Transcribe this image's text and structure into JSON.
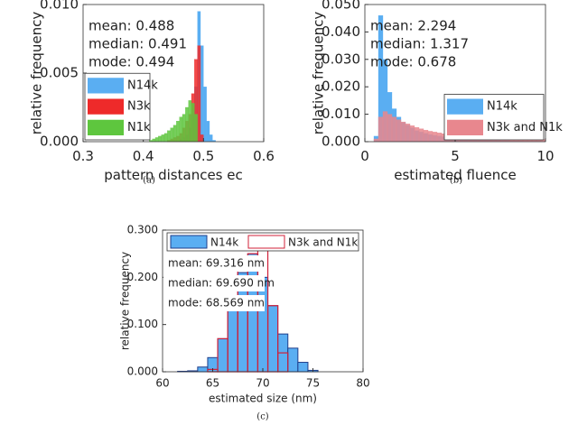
{
  "chart_data": [
    {
      "type": "histogram",
      "caption": "(a)",
      "xlabel": "pattern distances ec",
      "ylabel": "relative frequency",
      "xlim": [
        0.3,
        0.6
      ],
      "ylim": [
        0,
        0.01
      ],
      "xticks": [
        0.3,
        0.4,
        0.5,
        0.6
      ],
      "yticks": [
        {
          "value": 0,
          "label": "0.000"
        },
        {
          "value": 0.005,
          "label": "0.005"
        },
        {
          "value": 0.01,
          "label": "0.010"
        }
      ],
      "annotations": [
        "mean: 0.488",
        "median: 0.491",
        "mode: 0.494"
      ],
      "legend": "lower left",
      "bins": [
        0.4,
        0.405,
        0.41,
        0.415,
        0.42,
        0.425,
        0.43,
        0.435,
        0.44,
        0.445,
        0.45,
        0.455,
        0.46,
        0.465,
        0.47,
        0.475,
        0.48,
        0.485,
        0.49,
        0.495,
        0.5,
        0.505,
        0.51,
        0.515,
        0.52
      ],
      "series": [
        {
          "name": "N14k",
          "color": "#5aaef2",
          "style": "filled",
          "values": [
            0,
            0,
            0,
            0,
            0,
            0,
            0,
            0,
            0,
            0,
            0,
            0,
            0.0002,
            0.0003,
            0.0005,
            0.001,
            0.002,
            0.004,
            0.0095,
            0.007,
            0.004,
            0.0015,
            0.0005,
            0.0001
          ]
        },
        {
          "name": "N3k",
          "color": "#ee2a2a",
          "style": "filled",
          "values": [
            0,
            0,
            0,
            0,
            0,
            0,
            0,
            0,
            0.0001,
            0.0002,
            0.0003,
            0.0004,
            0.0006,
            0.001,
            0.0015,
            0.002,
            0.0035,
            0.006,
            0.007,
            0.0005,
            0,
            0,
            0,
            0
          ]
        },
        {
          "name": "N1k",
          "color": "#5ec63e",
          "style": "filled",
          "values": [
            0,
            0,
            0.0001,
            0.0002,
            0.0003,
            0.0004,
            0.0005,
            0.0006,
            0.0008,
            0.001,
            0.0012,
            0.0015,
            0.0018,
            0.002,
            0.0025,
            0.003,
            0.0028,
            0.002,
            0,
            0,
            0,
            0,
            0,
            0
          ]
        }
      ]
    },
    {
      "type": "histogram",
      "caption": "(b)",
      "xlabel": "estimated fluence",
      "ylabel": "relative frequency",
      "xlim": [
        0,
        10
      ],
      "ylim": [
        0,
        0.05
      ],
      "xticks": [
        0,
        5,
        10
      ],
      "yticks": [
        {
          "value": 0,
          "label": "0.000"
        },
        {
          "value": 0.01,
          "label": "0.010"
        },
        {
          "value": 0.02,
          "label": "0.020"
        },
        {
          "value": 0.03,
          "label": "0.030"
        },
        {
          "value": 0.04,
          "label": "0.040"
        },
        {
          "value": 0.05,
          "label": "0.050"
        }
      ],
      "annotations": [
        "mean: 2.294",
        "median: 1.317",
        "mode: 0.678"
      ],
      "legend": "lower right",
      "bins": [
        0,
        0.25,
        0.5,
        0.75,
        1,
        1.25,
        1.5,
        1.75,
        2,
        2.25,
        2.5,
        2.75,
        3,
        3.25,
        3.5,
        3.75,
        4,
        4.25,
        4.5,
        4.75,
        5,
        5.25,
        5.5,
        5.75,
        6,
        6.25,
        6.5,
        6.75,
        7,
        7.25,
        7.5,
        7.75,
        8,
        8.25,
        8.5,
        8.75,
        9,
        9.25,
        9.5,
        9.75,
        10
      ],
      "series": [
        {
          "name": "N14k",
          "color": "#5aaef2",
          "style": "filled",
          "values": [
            0,
            0,
            0.002,
            0.046,
            0.03,
            0.018,
            0.012,
            0.009,
            0.007,
            0.006,
            0.005,
            0.004,
            0.0035,
            0.003,
            0.0026,
            0.0023,
            0.002,
            0.0018,
            0.0016,
            0.0014,
            0.0012,
            0.0011,
            0.001,
            0.0009,
            0.0008,
            0.0007,
            0.0006,
            0.0006,
            0.0005,
            0.0005,
            0.0004,
            0.0004,
            0.0003,
            0.0003,
            0.0003,
            0.0002,
            0.0002,
            0.0002,
            0.0002,
            0.0001
          ]
        },
        {
          "name": "N3k and N1k",
          "color": "#e8878e",
          "style": "filled",
          "values": [
            0,
            0,
            0.001,
            0.009,
            0.011,
            0.01,
            0.009,
            0.008,
            0.0072,
            0.0065,
            0.0058,
            0.0052,
            0.0047,
            0.0042,
            0.0038,
            0.0035,
            0.0032,
            0.0029,
            0.0027,
            0.0025,
            0.0023,
            0.0021,
            0.002,
            0.0019,
            0.0018,
            0.0017,
            0.0016,
            0.0015,
            0.0014,
            0.0013,
            0.0013,
            0.0012,
            0.0012,
            0.0011,
            0.0011,
            0.001,
            0.001,
            0.0009,
            0.0009,
            0.0008
          ]
        }
      ]
    },
    {
      "type": "histogram",
      "caption": "(c)",
      "xlabel": "estimated size (nm)",
      "ylabel": "relative frequency",
      "xlim": [
        60,
        80
      ],
      "ylim": [
        0,
        0.3
      ],
      "xticks": [
        60,
        65,
        70,
        75,
        80
      ],
      "yticks": [
        {
          "value": 0,
          "label": "0.000"
        },
        {
          "value": 0.1,
          "label": "0.100"
        },
        {
          "value": 0.2,
          "label": "0.200"
        },
        {
          "value": 0.3,
          "label": "0.300"
        }
      ],
      "annotations": [
        "mean: 69.316 nm",
        "median: 69.690 nm",
        "mode: 68.569 nm"
      ],
      "legend": "upper center",
      "bins": [
        61.5,
        62.5,
        63.5,
        64.5,
        65.5,
        66.5,
        67.5,
        68.5,
        69.5,
        70.5,
        71.5,
        72.5,
        73.5,
        74.5,
        75.5
      ],
      "series": [
        {
          "name": "N14k",
          "color": "#5aaef2",
          "style": "filled",
          "values": [
            0.001,
            0.002,
            0.01,
            0.03,
            0.07,
            0.14,
            0.21,
            0.25,
            0.2,
            0.14,
            0.08,
            0.05,
            0.02,
            0.003
          ]
        },
        {
          "name": "N3k and N1k",
          "color": "#d0213a",
          "style": "outline",
          "values": [
            0,
            0,
            0,
            0.005,
            0.07,
            0.16,
            0.23,
            0.25,
            0.28,
            0.14,
            0.04,
            0,
            0,
            0
          ]
        }
      ]
    }
  ]
}
